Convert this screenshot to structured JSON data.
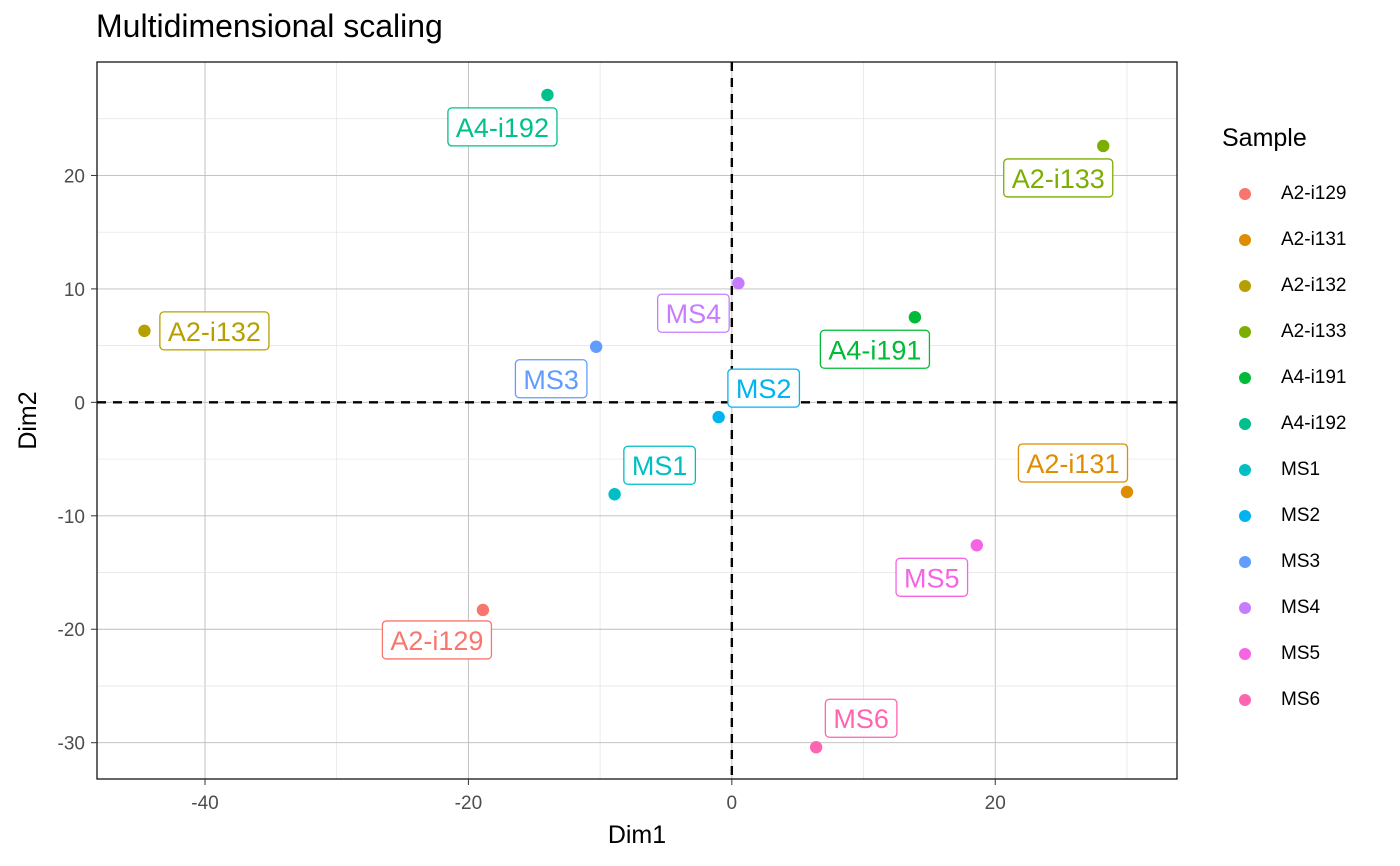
{
  "chart_data": {
    "type": "scatter",
    "title": "Multidimensional scaling",
    "xlabel": "Dim1",
    "ylabel": "Dim2",
    "xlim": [
      -48.2,
      33.8
    ],
    "ylim": [
      -33.2,
      30.0
    ],
    "xticks": [
      -40,
      -20,
      0,
      20
    ],
    "yticks": [
      -30,
      -20,
      -10,
      0,
      10,
      20
    ],
    "grid": true,
    "reference_lines": {
      "x": 0,
      "y": 0,
      "style": "dashed"
    },
    "legend": {
      "title": "Sample",
      "position": "right"
    },
    "points": [
      {
        "name": "A2-i129",
        "x": -18.9,
        "y": -18.3,
        "color": "#F8766D"
      },
      {
        "name": "A2-i131",
        "x": 30.0,
        "y": -7.9,
        "color": "#DE8C00"
      },
      {
        "name": "A2-i132",
        "x": -44.6,
        "y": 6.3,
        "color": "#B79F00"
      },
      {
        "name": "A2-i133",
        "x": 28.2,
        "y": 22.6,
        "color": "#7CAE00"
      },
      {
        "name": "A4-i191",
        "x": 13.9,
        "y": 7.5,
        "color": "#00BA38"
      },
      {
        "name": "A4-i192",
        "x": -14.0,
        "y": 27.1,
        "color": "#00C08B"
      },
      {
        "name": "MS1",
        "x": -8.9,
        "y": -8.1,
        "color": "#00BFC4"
      },
      {
        "name": "MS2",
        "x": -1.0,
        "y": -1.3,
        "color": "#00B4F0"
      },
      {
        "name": "MS3",
        "x": -10.3,
        "y": 4.9,
        "color": "#619CFF"
      },
      {
        "name": "MS4",
        "x": 0.5,
        "y": 10.5,
        "color": "#C77CFF"
      },
      {
        "name": "MS5",
        "x": 18.6,
        "y": -12.6,
        "color": "#F564E3"
      },
      {
        "name": "MS6",
        "x": 6.4,
        "y": -30.4,
        "color": "#FF64B0"
      }
    ]
  }
}
